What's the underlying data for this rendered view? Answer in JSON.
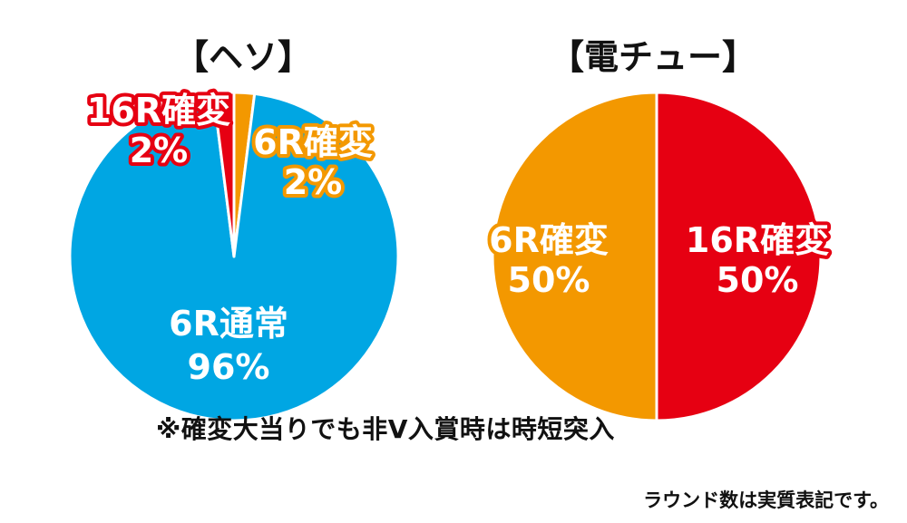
{
  "chart_data": [
    {
      "type": "pie",
      "title": "【ヘソ】",
      "start_angle_deg": 0,
      "direction": "clockwise",
      "slices": [
        {
          "label": "6R確変",
          "percent": "2%",
          "value": 2,
          "color": "#F39800",
          "label_fill": "#FFFFFF",
          "label_stroke": "#F39800"
        },
        {
          "label": "6R通常",
          "percent": "96%",
          "value": 96,
          "color": "#00A6E3",
          "label_fill": "#FFFFFF",
          "label_stroke": "#00A6E3"
        },
        {
          "label": "16R確変",
          "percent": "2%",
          "value": 2,
          "color": "#E60012",
          "label_fill": "#FFFFFF",
          "label_stroke": "#E60012"
        }
      ]
    },
    {
      "type": "pie",
      "title": "【電チュー】",
      "start_angle_deg": 0,
      "direction": "clockwise",
      "slices": [
        {
          "label": "16R確変",
          "percent": "50%",
          "value": 50,
          "color": "#E60012",
          "label_fill": "#FFFFFF",
          "label_stroke": "#E60012"
        },
        {
          "label": "6R確変",
          "percent": "50%",
          "value": 50,
          "color": "#F39800",
          "label_fill": "#FFFFFF",
          "label_stroke": "#F39800"
        }
      ]
    }
  ],
  "note": "※確変大当りでも非V入賞時は時短突入",
  "footer": "ラウンド数は実質表記です。"
}
